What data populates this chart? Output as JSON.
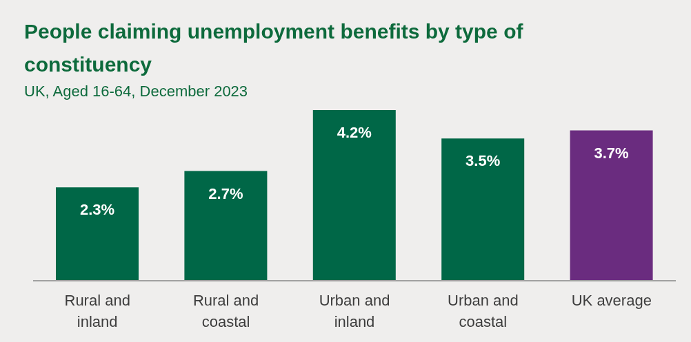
{
  "chart_data": {
    "type": "bar",
    "title": "People claiming unemployment benefits by type of constituency",
    "subtitle": "UK,  Aged 16-64, December 2023",
    "categories": [
      "Rural and inland",
      "Rural and coastal",
      "Urban and inland",
      "Urban and coastal",
      "UK average"
    ],
    "values": [
      2.3,
      2.7,
      4.2,
      3.5,
      3.7
    ],
    "value_labels": [
      "2.3%",
      "2.7%",
      "4.2%",
      "3.5%",
      "3.7%"
    ],
    "colors": [
      "#006747",
      "#006747",
      "#006747",
      "#006747",
      "#6a2c7f"
    ],
    "grid": false,
    "legend": false
  }
}
